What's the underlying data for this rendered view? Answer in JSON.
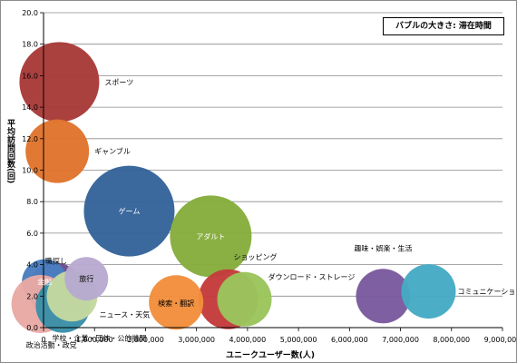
{
  "chart_data": {
    "type": "scatter",
    "subtype": "bubble",
    "title": "",
    "annotation": "バブルの大きさ: 滞在時間",
    "xlabel": "ユニークユーザー数(人)",
    "ylabel": "平均訪問回数(回)",
    "xlim": [
      0,
      9000000
    ],
    "ylim": [
      0,
      20
    ],
    "xticks": [
      "0",
      "1,000,000",
      "2,000,000",
      "3,000,000",
      "4,000,000",
      "5,000,000",
      "6,000,000",
      "7,000,000",
      "8,000,000",
      "9,000,000"
    ],
    "yticks": [
      "0.0",
      "2.0",
      "4.0",
      "6.0",
      "8.0",
      "10.0",
      "12.0",
      "14.0",
      "16.0",
      "18.0",
      "20.0"
    ],
    "grid": "horizontal",
    "series": [
      {
        "label": "スポーツ",
        "x": 310000,
        "y": 15.6,
        "size": 44,
        "color": "#a83b39"
      },
      {
        "label": "ギャンブル",
        "x": 270000,
        "y": 11.2,
        "size": 35,
        "color": "#e0752d"
      },
      {
        "label": "ゲーム",
        "x": 1680000,
        "y": 7.4,
        "size": 50,
        "color": "#35649a"
      },
      {
        "label": "アダルト",
        "x": 3280000,
        "y": 5.8,
        "size": 45,
        "color": "#86ad3d"
      },
      {
        "label": "職探し",
        "x": 230000,
        "y": 2.4,
        "size": 30,
        "color": "#6a4d93"
      },
      {
        "label": "金融",
        "x": 20000,
        "y": 2.9,
        "size": 25,
        "color": "#4a7ec0"
      },
      {
        "label": "政治活動・政党",
        "x": -60000,
        "y": 1.5,
        "size": 32,
        "color": "#e8a9a4"
      },
      {
        "label": "学校・企業・団体・公的機関",
        "x": 380000,
        "y": 1.4,
        "size": 30,
        "color": "#3a8fa8"
      },
      {
        "label": "ニュース・天気",
        "x": 560000,
        "y": 2.0,
        "size": 28,
        "color": "#c4d8a0"
      },
      {
        "label": "旅行",
        "x": 840000,
        "y": 3.1,
        "size": 24,
        "color": "#b8aad0"
      },
      {
        "label": "ショッピング",
        "x": 3620000,
        "y": 1.8,
        "size": 33,
        "color": "#c43c3c"
      },
      {
        "label": "検索・翻訳",
        "x": 2600000,
        "y": 1.6,
        "size": 30,
        "color": "#f28e3c"
      },
      {
        "label": "ダウンロード・ストレージ",
        "x": 3940000,
        "y": 1.8,
        "size": 30,
        "color": "#9bc45c"
      },
      {
        "label": "趣味・娯楽・生活",
        "x": 6660000,
        "y": 2.0,
        "size": 30,
        "color": "#7a5a9e"
      },
      {
        "label": "コミュニケーション",
        "x": 7550000,
        "y": 2.3,
        "size": 30,
        "color": "#46aac4"
      }
    ]
  }
}
